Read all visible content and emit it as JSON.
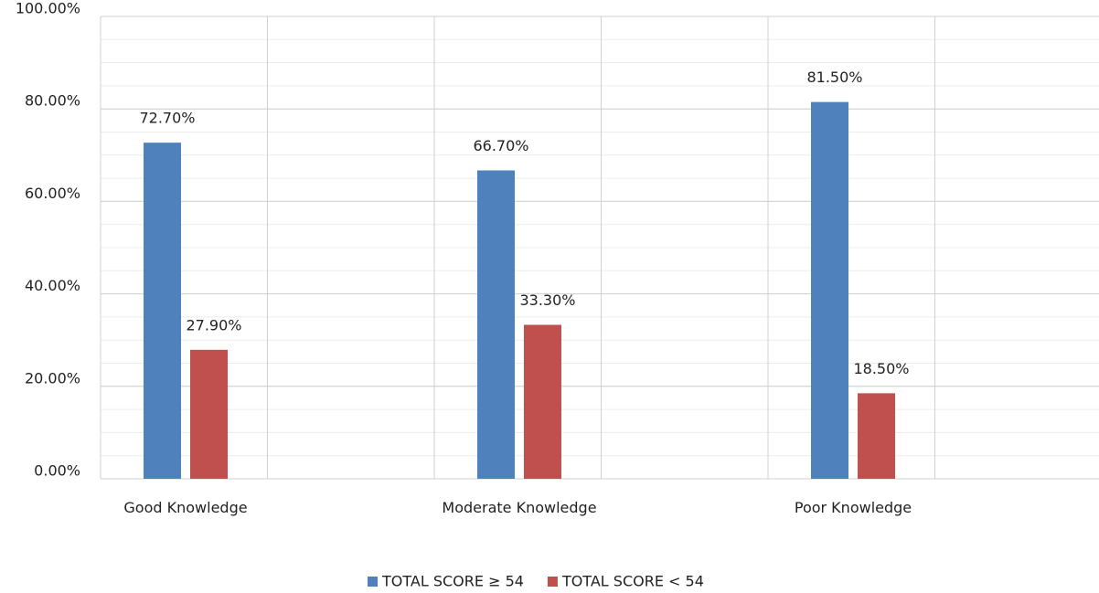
{
  "chart_data": {
    "type": "bar",
    "categories": [
      "Good Knowledge",
      "Moderate Knowledge",
      "Poor Knowledge"
    ],
    "series": [
      {
        "name": "TOTAL SCORE ≥ 54",
        "color": "#4f81bd",
        "values": [
          72.7,
          66.7,
          81.5
        ],
        "value_labels": [
          "72.70%",
          "66.70%",
          "81.50%"
        ]
      },
      {
        "name": "TOTAL SCORE < 54",
        "color": "#c0504d",
        "values": [
          27.9,
          33.3,
          18.5
        ],
        "value_labels": [
          "27.90%",
          "33.30%",
          "18.50%"
        ]
      }
    ],
    "ylim": [
      0,
      100
    ],
    "yticks": [
      {
        "value": 0,
        "label": "0.00%"
      },
      {
        "value": 20,
        "label": "20.00%"
      },
      {
        "value": 40,
        "label": "40.00%"
      },
      {
        "value": 60,
        "label": "60.00%"
      },
      {
        "value": 80,
        "label": "80.00%"
      },
      {
        "value": 100,
        "label": "100.00%"
      }
    ],
    "grid": true,
    "legend": "bottom"
  }
}
